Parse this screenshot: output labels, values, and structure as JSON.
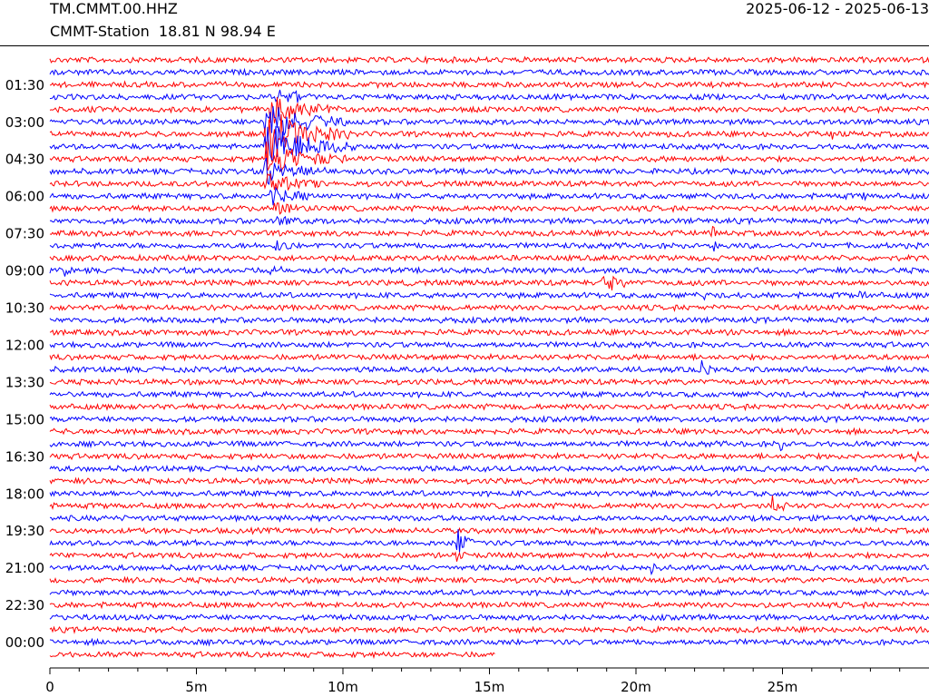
{
  "header": {
    "station_code": "TM.CMMT.00.HHZ",
    "station_desc": "CMMT-Station  18.81 N 98.94 E",
    "date_range": "2025-06-12 - 2025-06-13"
  },
  "chart_data": {
    "type": "line",
    "title": "",
    "xlabel": "",
    "ylabel": "",
    "x_unit": "minutes",
    "xlim": [
      0,
      30
    ],
    "x_ticks": [
      {
        "value": 0,
        "label": "0"
      },
      {
        "value": 5,
        "label": "5m"
      },
      {
        "value": 10,
        "label": "10m"
      },
      {
        "value": 15,
        "label": "15m"
      },
      {
        "value": 20,
        "label": "20m"
      },
      {
        "value": 25,
        "label": "25m"
      }
    ],
    "x_minor_step": 1,
    "y_ticks": [
      "01:30",
      "03:00",
      "04:30",
      "06:00",
      "07:30",
      "09:00",
      "10:30",
      "12:00",
      "13:30",
      "15:00",
      "16:30",
      "18:00",
      "19:30",
      "21:00",
      "22:30",
      "00:00"
    ],
    "trace_count": 49,
    "trace_colors": [
      "#ff0000",
      "#0000ff"
    ],
    "last_trace_end_minute": 15.2,
    "grid": false,
    "events": [
      {
        "row": 1,
        "minute": 3.3,
        "amp": 0.5,
        "dur": 0.2
      },
      {
        "row": 3,
        "minute": 7.7,
        "amp": 0.9,
        "dur": 1.5
      },
      {
        "row": 4,
        "minute": 7.5,
        "amp": 1.6,
        "dur": 2.5
      },
      {
        "row": 5,
        "minute": 7.3,
        "amp": 2.0,
        "dur": 2.8
      },
      {
        "row": 6,
        "minute": 7.3,
        "amp": 2.6,
        "dur": 3.0
      },
      {
        "row": 7,
        "minute": 7.3,
        "amp": 2.4,
        "dur": 3.2
      },
      {
        "row": 8,
        "minute": 7.3,
        "amp": 1.8,
        "dur": 2.8
      },
      {
        "row": 9,
        "minute": 7.3,
        "amp": 1.4,
        "dur": 2.4
      },
      {
        "row": 10,
        "minute": 7.3,
        "amp": 1.0,
        "dur": 2.0
      },
      {
        "row": 11,
        "minute": 7.5,
        "amp": 0.8,
        "dur": 1.5
      },
      {
        "row": 12,
        "minute": 7.6,
        "amp": 0.6,
        "dur": 1.2
      },
      {
        "row": 13,
        "minute": 7.7,
        "amp": 0.5,
        "dur": 1.0
      },
      {
        "row": 6,
        "minute": 26.7,
        "amp": 0.8,
        "dur": 0.3
      },
      {
        "row": 11,
        "minute": 27.7,
        "amp": 0.5,
        "dur": 0.2
      },
      {
        "row": 14,
        "minute": 22.6,
        "amp": 0.6,
        "dur": 0.3
      },
      {
        "row": 15,
        "minute": 7.7,
        "amp": 0.6,
        "dur": 0.6
      },
      {
        "row": 15,
        "minute": 22.6,
        "amp": 0.9,
        "dur": 0.4
      },
      {
        "row": 17,
        "minute": 0.5,
        "amp": 0.7,
        "dur": 0.3
      },
      {
        "row": 17,
        "minute": 7.5,
        "amp": 0.5,
        "dur": 0.8
      },
      {
        "row": 17,
        "minute": 16.9,
        "amp": 0.5,
        "dur": 0.2
      },
      {
        "row": 18,
        "minute": 18.8,
        "amp": 1.3,
        "dur": 0.9
      },
      {
        "row": 19,
        "minute": 22.3,
        "amp": 0.6,
        "dur": 0.2
      },
      {
        "row": 19,
        "minute": 27.5,
        "amp": 0.6,
        "dur": 0.4
      },
      {
        "row": 25,
        "minute": 22.2,
        "amp": 0.7,
        "dur": 0.5
      },
      {
        "row": 31,
        "minute": 24.9,
        "amp": 0.8,
        "dur": 0.3
      },
      {
        "row": 32,
        "minute": 29.5,
        "amp": 0.8,
        "dur": 0.3
      },
      {
        "row": 36,
        "minute": 24.6,
        "amp": 1.1,
        "dur": 0.6
      },
      {
        "row": 39,
        "minute": 13.8,
        "amp": 1.8,
        "dur": 0.7
      },
      {
        "row": 40,
        "minute": 13.8,
        "amp": 1.2,
        "dur": 0.4
      },
      {
        "row": 41,
        "minute": 20.5,
        "amp": 0.5,
        "dur": 0.3
      }
    ]
  }
}
